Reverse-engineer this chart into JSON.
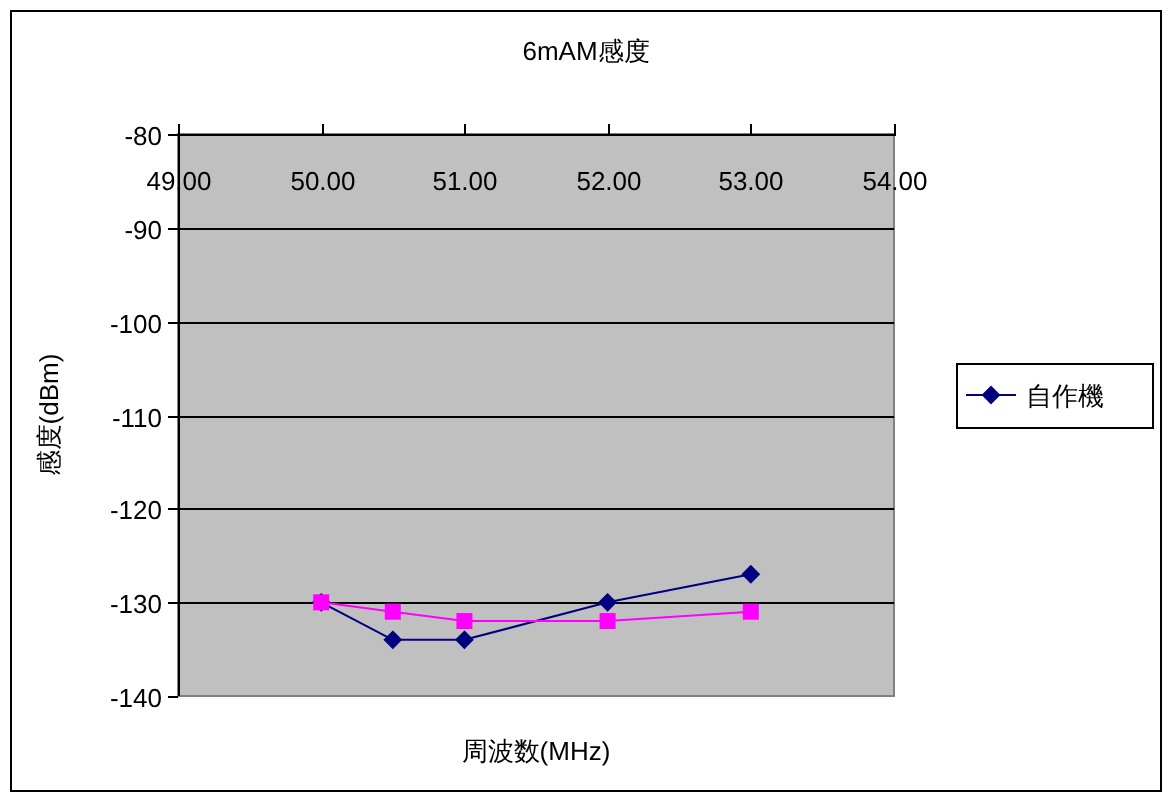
{
  "chart_data": {
    "type": "line",
    "title": "6mAM感度",
    "xlabel": "周波数(MHz)",
    "ylabel": "感度(dBm)",
    "x": [
      50,
      50.5,
      51,
      52,
      53
    ],
    "series": [
      {
        "name": "自作機",
        "color": "#000080",
        "marker": "diamond",
        "values": [
          -130,
          -134,
          -134,
          -130,
          -127
        ]
      },
      {
        "color": "#ff00ff",
        "marker": "square",
        "values": [
          -130,
          -131,
          -132,
          -132,
          -131
        ]
      }
    ],
    "xlim": [
      49,
      54
    ],
    "xticks": [
      {
        "value": 49,
        "label": "49.00"
      },
      {
        "value": 50,
        "label": "50.00"
      },
      {
        "value": 51,
        "label": "51.00"
      },
      {
        "value": 52,
        "label": "52.00"
      },
      {
        "value": 53,
        "label": "53.00"
      },
      {
        "value": 54,
        "label": "54.00"
      }
    ],
    "ylim": [
      -140,
      -80
    ],
    "yticks": [
      -140,
      -130,
      -120,
      -110,
      -100,
      -90,
      -80
    ],
    "grid": "y",
    "legend": "right"
  }
}
